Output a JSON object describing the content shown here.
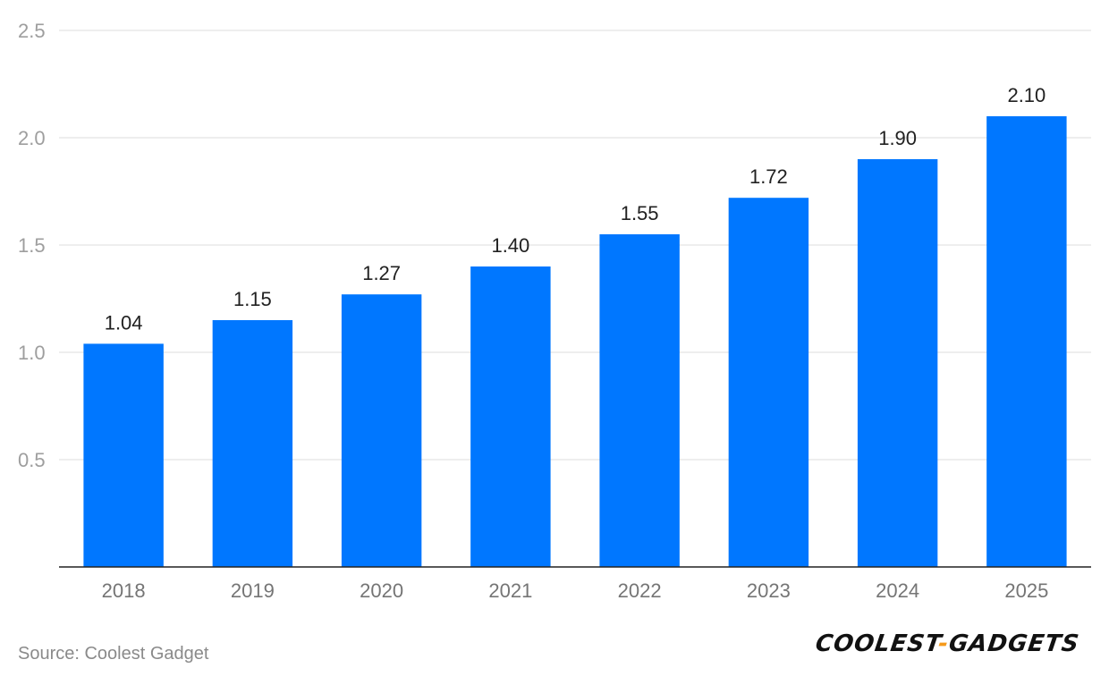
{
  "chart_data": {
    "type": "bar",
    "categories": [
      "2018",
      "2019",
      "2020",
      "2021",
      "2022",
      "2023",
      "2024",
      "2025"
    ],
    "values": [
      1.04,
      1.15,
      1.27,
      1.4,
      1.55,
      1.72,
      1.9,
      2.1
    ],
    "value_labels": [
      "1.04",
      "1.15",
      "1.27",
      "1.40",
      "1.55",
      "1.72",
      "1.90",
      "2.10"
    ],
    "title": "",
    "xlabel": "",
    "ylabel": "",
    "ylim": [
      0,
      2.5
    ],
    "yticks": [
      0.5,
      1.0,
      1.5,
      2.0,
      2.5
    ],
    "ytick_labels": [
      "0.5",
      "1.0",
      "1.5",
      "2.0",
      "2.5"
    ],
    "grid": true,
    "bar_color": "#0077ff"
  },
  "footer": {
    "source": "Source: Coolest Gadget",
    "logo_left": "COOLEST",
    "logo_dash": "-",
    "logo_right": "GADGETS"
  }
}
